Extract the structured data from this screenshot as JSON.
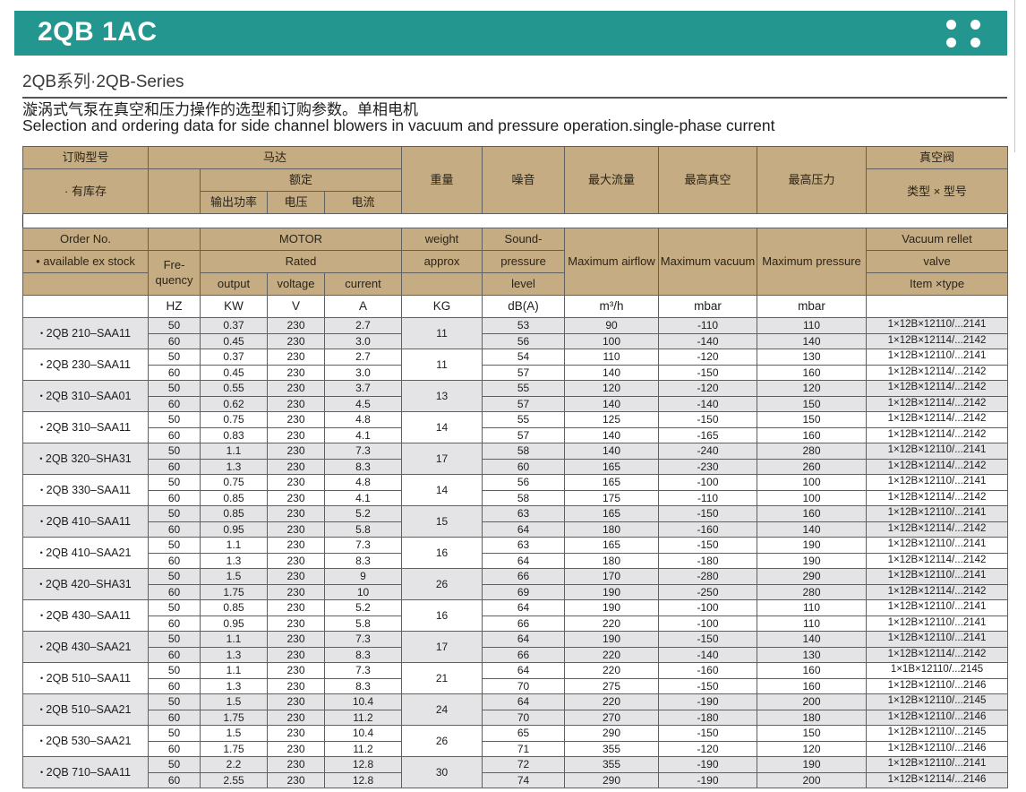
{
  "title": "2QB 1AC",
  "series_heading": "2QB系列·2QB-Series",
  "description_zh": "漩涡式气泵在真空和压力操作的选型和订购参数。单相电机",
  "description_en": "Selection and ordering data for side channel blowers in vacuum and pressure operation.single-phase current",
  "colors": {
    "accent_teal": "#23968f",
    "header_tan": "#c5ac83",
    "row_shaded": "#e4e4e6"
  },
  "table": {
    "headers_zh": {
      "order_no": "订购型号",
      "in_stock": "· 有库存",
      "motor": "马达",
      "rated": "额定",
      "output": "输出功率",
      "voltage": "电压",
      "current": "电流",
      "weight": "重量",
      "noise": "噪音",
      "max_airflow": "最大流量",
      "max_vacuum": "最高真空",
      "max_pressure": "最高压力",
      "vacuum_valve": "真空阀",
      "valve_type": "类型 × 型号"
    },
    "headers_en": {
      "order_no": "Order No.",
      "available": "• available ex stock",
      "frequency": "Fre-quency",
      "motor": "MOTOR",
      "rated": "Rated",
      "output": "output",
      "voltage": "voltage",
      "current": "current",
      "weight": "weight",
      "approx": "approx",
      "sound1": "Sound-",
      "sound2": "pressure",
      "sound3": "level",
      "max_airflow": "Maximum airflow",
      "max_vacuum": "Maximum vacuum",
      "max_pressure": "Maximum pressure",
      "valve1": "Vacuum rellet",
      "valve2": "valve",
      "valve3": "Item ×type"
    },
    "units": {
      "frequency": "HZ",
      "output": "KW",
      "voltage": "V",
      "current": "A",
      "weight": "KG",
      "sound": "dB(A)",
      "airflow": "m³/h",
      "vacuum": "mbar",
      "pressure": "mbar"
    },
    "bullet": "•",
    "row_fields": [
      "frequency",
      "output",
      "voltage",
      "current",
      "sound_level",
      "max_airflow",
      "max_vacuum",
      "max_pressure",
      "valve_item"
    ],
    "models": [
      {
        "name": "2QB 210–SAA11",
        "weight": "11",
        "rows": [
          [
            "50",
            "0.37",
            "230",
            "2.7",
            "53",
            "90",
            "-110",
            "110",
            "1×12B×12110/...2141"
          ],
          [
            "60",
            "0.45",
            "230",
            "3.0",
            "56",
            "100",
            "-140",
            "140",
            "1×12B×12114/...2142"
          ]
        ]
      },
      {
        "name": "2QB 230–SAA11",
        "weight": "11",
        "rows": [
          [
            "50",
            "0.37",
            "230",
            "2.7",
            "54",
            "110",
            "-120",
            "130",
            "1×12B×12110/...2141"
          ],
          [
            "60",
            "0.45",
            "230",
            "3.0",
            "57",
            "140",
            "-150",
            "160",
            "1×12B×12114/...2142"
          ]
        ]
      },
      {
        "name": "2QB 310–SAA01",
        "weight": "13",
        "rows": [
          [
            "50",
            "0.55",
            "230",
            "3.7",
            "55",
            "120",
            "-120",
            "120",
            "1×12B×12114/...2142"
          ],
          [
            "60",
            "0.62",
            "230",
            "4.5",
            "57",
            "140",
            "-140",
            "150",
            "1×12B×12114/...2142"
          ]
        ]
      },
      {
        "name": "2QB 310–SAA11",
        "weight": "14",
        "rows": [
          [
            "50",
            "0.75",
            "230",
            "4.8",
            "55",
            "125",
            "-150",
            "150",
            "1×12B×12114/...2142"
          ],
          [
            "60",
            "0.83",
            "230",
            "4.1",
            "57",
            "140",
            "-165",
            "160",
            "1×12B×12114/...2142"
          ]
        ]
      },
      {
        "name": "2QB 320–SHA31",
        "weight": "17",
        "rows": [
          [
            "50",
            "1.1",
            "230",
            "7.3",
            "58",
            "140",
            "-240",
            "280",
            "1×12B×12110/...2141"
          ],
          [
            "60",
            "1.3",
            "230",
            "8.3",
            "60",
            "165",
            "-230",
            "260",
            "1×12B×12114/...2142"
          ]
        ]
      },
      {
        "name": "2QB 330–SAA11",
        "weight": "14",
        "rows": [
          [
            "50",
            "0.75",
            "230",
            "4.8",
            "56",
            "165",
            "-100",
            "100",
            "1×12B×12110/...2141"
          ],
          [
            "60",
            "0.85",
            "230",
            "4.1",
            "58",
            "175",
            "-110",
            "100",
            "1×12B×12114/...2142"
          ]
        ]
      },
      {
        "name": "2QB 410–SAA11",
        "weight": "15",
        "rows": [
          [
            "50",
            "0.85",
            "230",
            "5.2",
            "63",
            "165",
            "-150",
            "160",
            "1×12B×12110/...2141"
          ],
          [
            "60",
            "0.95",
            "230",
            "5.8",
            "64",
            "180",
            "-160",
            "140",
            "1×12B×12114/...2142"
          ]
        ]
      },
      {
        "name": "2QB 410–SAA21",
        "weight": "16",
        "rows": [
          [
            "50",
            "1.1",
            "230",
            "7.3",
            "63",
            "165",
            "-150",
            "190",
            "1×12B×12110/...2141"
          ],
          [
            "60",
            "1.3",
            "230",
            "8.3",
            "64",
            "180",
            "-180",
            "190",
            "1×12B×12114/...2142"
          ]
        ]
      },
      {
        "name": "2QB 420–SHA31",
        "weight": "26",
        "rows": [
          [
            "50",
            "1.5",
            "230",
            "9",
            "66",
            "170",
            "-280",
            "290",
            "1×12B×12110/...2141"
          ],
          [
            "60",
            "1.75",
            "230",
            "10",
            "69",
            "190",
            "-250",
            "280",
            "1×12B×12114/...2142"
          ]
        ]
      },
      {
        "name": "2QB 430–SAA11",
        "weight": "16",
        "rows": [
          [
            "50",
            "0.85",
            "230",
            "5.2",
            "64",
            "190",
            "-100",
            "110",
            "1×12B×12110/...2141"
          ],
          [
            "60",
            "0.95",
            "230",
            "5.8",
            "66",
            "220",
            "-100",
            "110",
            "1×12B×12110/...2141"
          ]
        ]
      },
      {
        "name": "2QB 430–SAA21",
        "weight": "17",
        "rows": [
          [
            "50",
            "1.1",
            "230",
            "7.3",
            "64",
            "190",
            "-150",
            "140",
            "1×12B×12110/...2141"
          ],
          [
            "60",
            "1.3",
            "230",
            "8.3",
            "66",
            "220",
            "-140",
            "130",
            "1×12B×12114/...2142"
          ]
        ]
      },
      {
        "name": "2QB 510–SAA11",
        "weight": "21",
        "rows": [
          [
            "50",
            "1.1",
            "230",
            "7.3",
            "64",
            "220",
            "-160",
            "160",
            "1×1B×12110/...2145"
          ],
          [
            "60",
            "1.3",
            "230",
            "8.3",
            "70",
            "275",
            "-150",
            "160",
            "1×12B×12110/...2146"
          ]
        ]
      },
      {
        "name": "2QB 510–SAA21",
        "weight": "24",
        "rows": [
          [
            "50",
            "1.5",
            "230",
            "10.4",
            "64",
            "220",
            "-190",
            "200",
            "1×12B×12110/...2145"
          ],
          [
            "60",
            "1.75",
            "230",
            "11.2",
            "70",
            "270",
            "-180",
            "180",
            "1×12B×12110/...2146"
          ]
        ]
      },
      {
        "name": "2QB 530–SAA21",
        "weight": "26",
        "rows": [
          [
            "50",
            "1.5",
            "230",
            "10.4",
            "65",
            "290",
            "-150",
            "150",
            "1×12B×12110/...2145"
          ],
          [
            "60",
            "1.75",
            "230",
            "11.2",
            "71",
            "355",
            "-120",
            "120",
            "1×12B×12110/...2146"
          ]
        ]
      },
      {
        "name": "2QB 710–SAA11",
        "weight": "30",
        "rows": [
          [
            "50",
            "2.2",
            "230",
            "12.8",
            "72",
            "355",
            "-190",
            "190",
            "1×12B×12110/...2141"
          ],
          [
            "60",
            "2.55",
            "230",
            "12.8",
            "74",
            "290",
            "-190",
            "200",
            "1×12B×12114/...2146"
          ]
        ]
      }
    ]
  }
}
